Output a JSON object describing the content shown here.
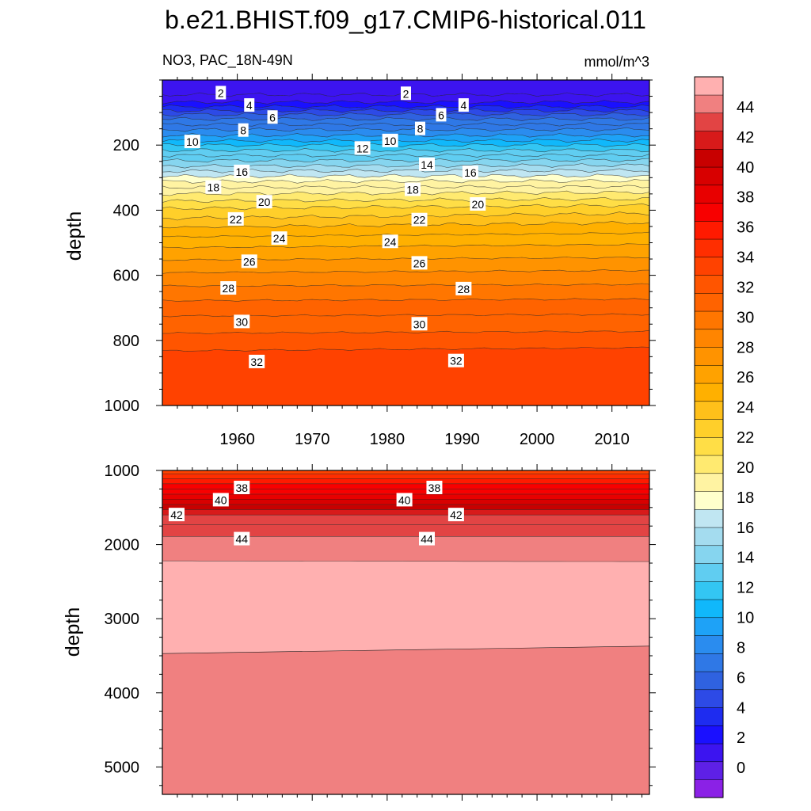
{
  "chart_data": {
    "type": "heatmap",
    "title": "b.e21.BHIST.f09_g17.CMIP6-historical.011",
    "variable_label": "NO3, PAC_18N-49N",
    "units_label": "mmol/m^3",
    "colormap": [
      "#8b21e6",
      "#5e20e6",
      "#3c14f0",
      "#1a10ff",
      "#1e2cf0",
      "#2d4ae6",
      "#2f62e0",
      "#2f78e6",
      "#2a8cef",
      "#1ea2f7",
      "#10b8fb",
      "#33c6f3",
      "#60cdf1",
      "#86d5ef",
      "#a4dcef",
      "#c0e6f2",
      "#ffffcc",
      "#fff3a2",
      "#ffea70",
      "#ffde46",
      "#ffcf2a",
      "#ffc01a",
      "#ffb000",
      "#ffa200",
      "#ff9300",
      "#ff8500",
      "#ff7600",
      "#ff6300",
      "#ff5500",
      "#ff4200",
      "#ff2e00",
      "#ff1a00",
      "#f80000",
      "#e80000",
      "#d80000",
      "#c80000",
      "#d81a1a",
      "#e24444",
      "#f08080",
      "#ffb0b0"
    ],
    "colorbar_tick_values": [
      0,
      2,
      4,
      6,
      8,
      10,
      12,
      14,
      16,
      18,
      20,
      22,
      24,
      26,
      28,
      30,
      32,
      34,
      36,
      38,
      40,
      42,
      44
    ],
    "colorbar_tick_labels": [
      "0",
      "2",
      "4",
      "6",
      "8",
      "10",
      "12",
      "14",
      "16",
      "18",
      "20",
      "22",
      "24",
      "26",
      "28",
      "30",
      "32",
      "34",
      "36",
      "38",
      "40",
      "42",
      "44"
    ],
    "panels": [
      {
        "name": "upper",
        "ylabel": "depth",
        "xlabel": "",
        "xlim": [
          1950,
          2015
        ],
        "ylim": [
          1000,
          0
        ],
        "x_ticks": [
          1960,
          1970,
          1980,
          1990,
          2000,
          2010
        ],
        "x_tick_labels": [
          "1960",
          "1970",
          "1980",
          "1990",
          "2000",
          "2010"
        ],
        "y_ticks": [
          200,
          400,
          600,
          800,
          1000
        ],
        "y_tick_labels": [
          "200",
          "400",
          "600",
          "800",
          "1000"
        ],
        "contour_levels": [
          1,
          2,
          3,
          4,
          5,
          6,
          7,
          8,
          9,
          10,
          11,
          12,
          13,
          14,
          15,
          16,
          17,
          18,
          19,
          20,
          21,
          22,
          23,
          24,
          25,
          26,
          27,
          28,
          29,
          30,
          31,
          32,
          33
        ],
        "contour_depth_start": [
          45,
          68,
          82,
          94,
          106,
          120,
          137,
          153,
          170,
          187,
          200,
          216,
          232,
          248,
          265,
          280,
          296,
          312,
          330,
          350,
          372,
          395,
          425,
          453,
          482,
          515,
          553,
          592,
          633,
          678,
          725,
          778,
          832
        ],
        "contour_depth_end": [
          45,
          68,
          82,
          94,
          106,
          120,
          136,
          152,
          170,
          186,
          200,
          216,
          231,
          246,
          262,
          278,
          294,
          310,
          328,
          345,
          365,
          385,
          410,
          438,
          470,
          505,
          545,
          585,
          628,
          673,
          720,
          772,
          822
        ],
        "contour_labels": [
          {
            "text": "2",
            "x": 1957.8,
            "depth": 40
          },
          {
            "text": "4",
            "x": 1961.6,
            "depth": 78
          },
          {
            "text": "6",
            "x": 1964.7,
            "depth": 115
          },
          {
            "text": "8",
            "x": 1960.8,
            "depth": 155
          },
          {
            "text": "10",
            "x": 1954.0,
            "depth": 190
          },
          {
            "text": "16",
            "x": 1960.6,
            "depth": 282
          },
          {
            "text": "18",
            "x": 1956.8,
            "depth": 330
          },
          {
            "text": "20",
            "x": 1963.6,
            "depth": 375
          },
          {
            "text": "22",
            "x": 1959.8,
            "depth": 428
          },
          {
            "text": "24",
            "x": 1965.6,
            "depth": 487
          },
          {
            "text": "26",
            "x": 1961.6,
            "depth": 558
          },
          {
            "text": "28",
            "x": 1958.8,
            "depth": 640
          },
          {
            "text": "30",
            "x": 1960.6,
            "depth": 743
          },
          {
            "text": "32",
            "x": 1962.6,
            "depth": 866
          },
          {
            "text": "2",
            "x": 1982.5,
            "depth": 42
          },
          {
            "text": "4",
            "x": 1990.2,
            "depth": 78
          },
          {
            "text": "6",
            "x": 1987.2,
            "depth": 108
          },
          {
            "text": "8",
            "x": 1984.4,
            "depth": 150
          },
          {
            "text": "10",
            "x": 1980.4,
            "depth": 187
          },
          {
            "text": "12",
            "x": 1976.7,
            "depth": 210
          },
          {
            "text": "14",
            "x": 1985.3,
            "depth": 260
          },
          {
            "text": "16",
            "x": 1991.1,
            "depth": 285
          },
          {
            "text": "18",
            "x": 1983.4,
            "depth": 337
          },
          {
            "text": "20",
            "x": 1992.1,
            "depth": 382
          },
          {
            "text": "22",
            "x": 1984.3,
            "depth": 430
          },
          {
            "text": "24",
            "x": 1980.4,
            "depth": 497
          },
          {
            "text": "26",
            "x": 1984.3,
            "depth": 563
          },
          {
            "text": "28",
            "x": 1990.2,
            "depth": 642
          },
          {
            "text": "30",
            "x": 1984.3,
            "depth": 750
          },
          {
            "text": "32",
            "x": 1989.2,
            "depth": 863
          }
        ]
      },
      {
        "name": "lower",
        "ylabel": "depth",
        "xlabel": "",
        "xlim": [
          1950,
          2015
        ],
        "ylim": [
          5370,
          1000
        ],
        "y_ticks": [
          1000,
          2000,
          3000,
          4000,
          5000
        ],
        "y_tick_labels": [
          "1000",
          "2000",
          "3000",
          "4000",
          "5000"
        ],
        "contour_levels": [
          34,
          35,
          36,
          37,
          38,
          39,
          40,
          41,
          42,
          43,
          44,
          45
        ],
        "contour_depth_start": [
          1045,
          1110,
          1180,
          1250,
          1320,
          1390,
          1460,
          1530,
          1600,
          1730,
          1890,
          2220
        ],
        "contour_depth_end": [
          1045,
          1110,
          1180,
          1250,
          1320,
          1390,
          1460,
          1530,
          1600,
          1730,
          1890,
          2230
        ],
        "deep_contour_depth_start": 3470,
        "deep_contour_depth_end": 3370,
        "deep_band_value": 44.5,
        "contour_labels": [
          {
            "text": "38",
            "x": 1960.6,
            "depth": 1235
          },
          {
            "text": "40",
            "x": 1957.8,
            "depth": 1400
          },
          {
            "text": "42",
            "x": 1951.9,
            "depth": 1600
          },
          {
            "text": "44",
            "x": 1960.6,
            "depth": 1925
          },
          {
            "text": "38",
            "x": 1986.3,
            "depth": 1235
          },
          {
            "text": "40",
            "x": 1982.3,
            "depth": 1400
          },
          {
            "text": "42",
            "x": 1989.2,
            "depth": 1600
          },
          {
            "text": "44",
            "x": 1985.3,
            "depth": 1925
          }
        ]
      }
    ]
  }
}
